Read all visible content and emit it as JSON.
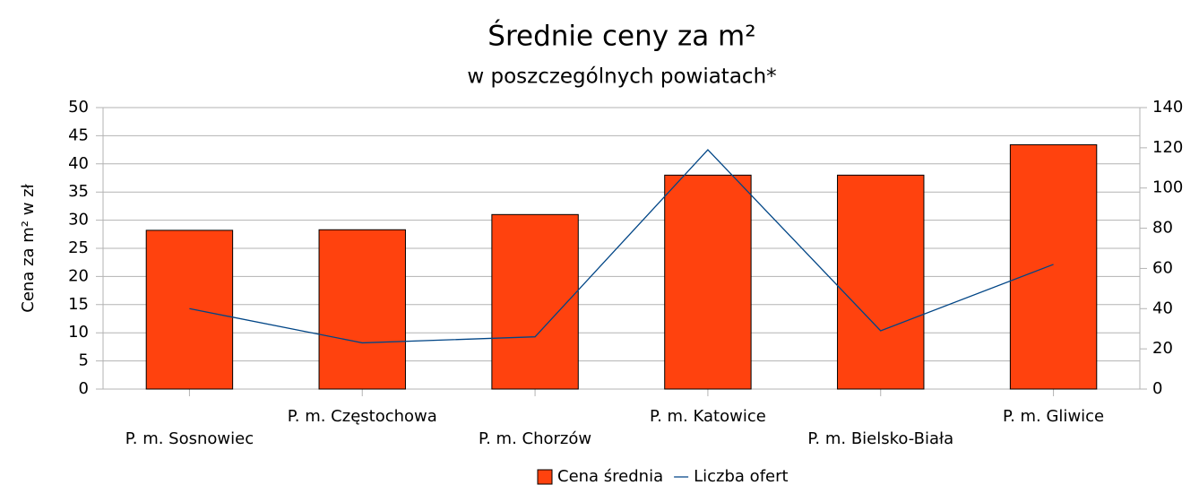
{
  "chart_data": {
    "type": "bar-line",
    "title": "Średnie ceny za m²",
    "subtitle": "w poszczególnych powiatach*",
    "y_label": "Cena za m² w zł",
    "categories": [
      "P. m. Sosnowiec",
      "P. m. Częstochowa",
      "P. m. Chorzów",
      "P. m. Katowice",
      "P. m. Bielsko-Biała",
      "P. m. Gliwice"
    ],
    "series": [
      {
        "name": "Cena średnia",
        "type": "bar",
        "color": "#ff420e",
        "values": [
          28.2,
          28.3,
          31,
          38,
          38,
          43.4
        ]
      },
      {
        "name": "Liczba ofert",
        "type": "line",
        "axis": "y2",
        "color": "#004586",
        "values": [
          40,
          23,
          26,
          119,
          29,
          62
        ]
      }
    ],
    "ylim": [
      0,
      50
    ],
    "yticks": [
      0,
      5,
      10,
      15,
      20,
      25,
      30,
      35,
      40,
      45,
      50
    ],
    "y2lim": [
      0,
      140
    ],
    "y2ticks": [
      0,
      20,
      40,
      60,
      80,
      100,
      120,
      140
    ],
    "grid": true,
    "legend": "bottom"
  }
}
